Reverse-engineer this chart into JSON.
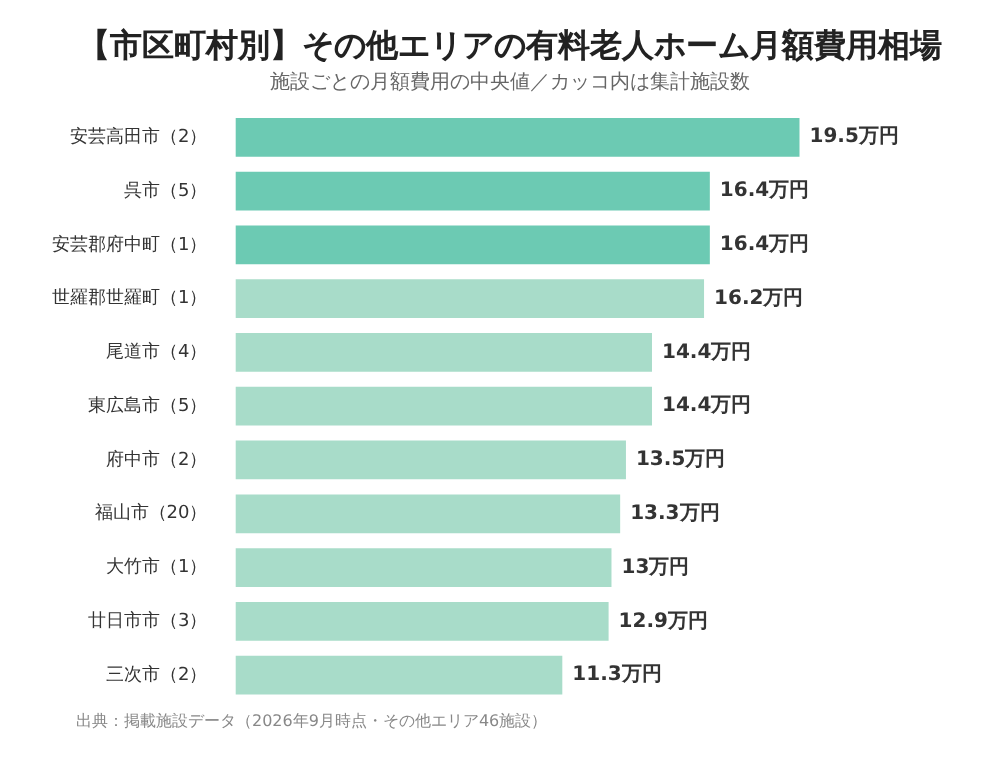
{
  "chart_data": {
    "type": "bar",
    "orientation": "horizontal",
    "title": "【市区町村別】その他エリアの有料老人ホーム月額費用相場",
    "subtitle": "施設ごとの月額費用の中央値／カッコ内は集計施設数",
    "categories": [
      "安芸高田市（2）",
      "呉市（5）",
      "安芸郡府中町（1）",
      "世羅郡世羅町（1）",
      "尾道市（4）",
      "東広島市（5）",
      "府中市（2）",
      "福山市（20）",
      "大竹市（1）",
      "廿日市市（3）",
      "三次市（2）"
    ],
    "values": [
      19.5,
      16.4,
      16.4,
      16.2,
      14.4,
      14.4,
      13.5,
      13.3,
      13,
      12.9,
      11.3
    ],
    "value_labels": [
      "19.5万円",
      "16.4万円",
      "16.4万円",
      "16.2万円",
      "14.4万円",
      "14.4万円",
      "13.5万円",
      "13.3万円",
      "13万円",
      "12.9万円",
      "11.3万円"
    ],
    "colors": [
      "#6ccab3",
      "#6ccab3",
      "#6ccab3",
      "#a8dcc9",
      "#a8dcc9",
      "#a8dcc9",
      "#a8dcc9",
      "#a8dcc9",
      "#a8dcc9",
      "#a8dcc9",
      "#a8dcc9"
    ],
    "annotations": [
      "出典：掲載施設データ（2026年9月時点・その他エリア46施設）"
    ],
    "legend": false
  }
}
